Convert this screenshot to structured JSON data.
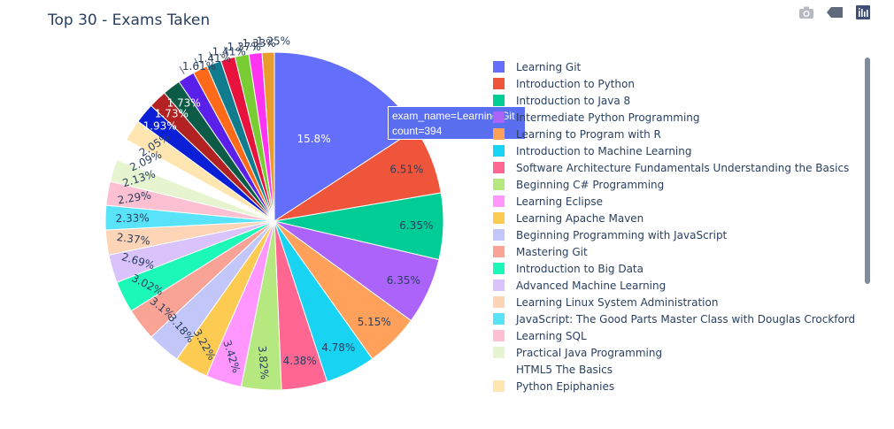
{
  "chart_data": {
    "type": "pie",
    "title": "Top 30 - Exams Taken",
    "legend_position": "right",
    "categories": [
      "Learning Git",
      "Introduction to Python",
      "Introduction to Java 8",
      "Intermediate Python Programming",
      "Learning to Program with R",
      "Introduction to Machine Learning",
      "Software Architecture Fundamentals Understanding the Basics",
      "Beginning C# Programming",
      "Learning Eclipse",
      "Learning Apache Maven",
      "Beginning Programming with JavaScript",
      "Mastering Git",
      "Introduction to Big Data",
      "Advanced Machine Learning",
      "Learning Linux System Administration",
      "JavaScript: The Good Parts Master Class with Douglas Crockford",
      "Learning SQL",
      "Practical Java Programming",
      "HTML5 The Basics",
      "Python Epiphanies",
      "",
      "",
      "",
      "",
      "",
      "",
      "",
      "",
      "",
      ""
    ],
    "values": [
      15.8,
      6.51,
      6.35,
      6.35,
      5.15,
      4.78,
      4.38,
      3.82,
      3.42,
      3.22,
      3.18,
      3.1,
      3.02,
      2.69,
      2.37,
      2.33,
      2.29,
      2.13,
      2.09,
      2.05,
      1.93,
      1.73,
      1.73,
      1.61,
      1.41,
      1.41,
      1.37,
      1.33,
      1.25,
      1.17
    ],
    "labels": [
      "15.8%",
      "6.51%",
      "6.35%",
      "6.35%",
      "5.15%",
      "4.78%",
      "4.38%",
      "3.82%",
      "3.42%",
      "3.22%",
      "3.18%",
      "3.1%",
      "3.02%",
      "2.69%",
      "2.37%",
      "2.33%",
      "2.29%",
      "2.13%",
      "2.09%",
      "2.05%",
      "1.93%",
      "1.73%",
      "1.73%",
      "1.61%",
      "1.41%",
      "1.41%",
      "1.37%",
      "1.33%",
      "1.25%",
      ""
    ],
    "colors": [
      "#636EFA",
      "#EF553B",
      "#00CC96",
      "#AB63FA",
      "#FFA15A",
      "#19D3F3",
      "#FF6692",
      "#B6E880",
      "#FF97FF",
      "#FECB52",
      "#C3C6F8",
      "#F9A296",
      "#1CF8B7",
      "#D9C3FA",
      "#FED4B7",
      "#58E3F9",
      "#FCC0D2",
      "#E6F5D0",
      "#FFFFFF",
      "#FFE6B0",
      "#0A1FD6",
      "#B22222",
      "#0B5B47",
      "#5A1FE8",
      "#FF6A1A",
      "#117C8E",
      "#E8133C",
      "#7ACC35",
      "#FF33F0",
      "#E89C2E"
    ],
    "highlighted_slice": 0
  },
  "tooltip": {
    "line1": "exam_name=Learning Git",
    "line2": "count=394"
  },
  "modebar": {
    "camera_icon": "camera-icon",
    "pan_icon": "tag-icon",
    "logo_icon": "plotly-logo-icon"
  }
}
